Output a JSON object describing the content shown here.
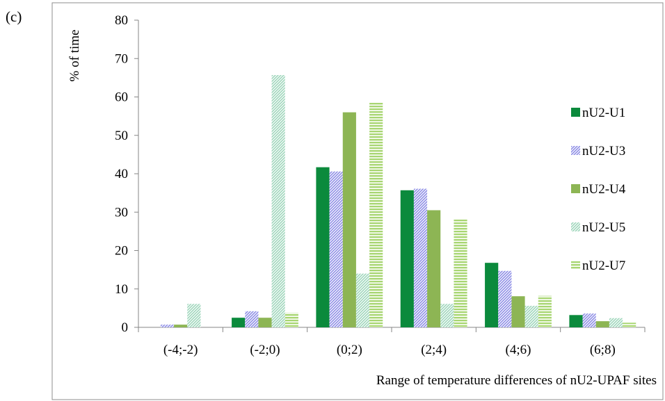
{
  "panel_label": "(c)",
  "chart_data": {
    "type": "bar",
    "title": "",
    "xlabel": "Range of temperature differences of nU2-UPAF sites",
    "ylabel": "% of time",
    "ylim": [
      0,
      80
    ],
    "yticks": [
      0,
      10,
      20,
      30,
      40,
      50,
      60,
      70,
      80
    ],
    "grid": false,
    "legend_position": "right",
    "categories": [
      "(-4;-2)",
      "(-2;0)",
      "(0;2)",
      "(2;4)",
      "(4;6)",
      "(6;8)"
    ],
    "series": [
      {
        "name": "nU2-U1",
        "color": "#0b8a3c",
        "pattern": "solid",
        "values": [
          0,
          2.5,
          41.7,
          35.7,
          16.8,
          3.2
        ]
      },
      {
        "name": "nU2-U3",
        "color": "#8e8ee6",
        "pattern": "diagonal",
        "values": [
          0.7,
          4.2,
          40.6,
          36.1,
          14.7,
          3.6
        ]
      },
      {
        "name": "nU2-U4",
        "color": "#8db554",
        "pattern": "solid",
        "values": [
          0.7,
          2.5,
          56.0,
          30.5,
          8.1,
          1.6
        ]
      },
      {
        "name": "nU2-U5",
        "color": "#9ed6bb",
        "pattern": "diagonal",
        "values": [
          6.1,
          65.7,
          14.0,
          6.1,
          5.6,
          2.4
        ]
      },
      {
        "name": "nU2-U7",
        "color": "#a8d672",
        "pattern": "horizontal",
        "values": [
          0,
          3.8,
          58.5,
          28.1,
          8.2,
          1.2
        ]
      }
    ]
  }
}
